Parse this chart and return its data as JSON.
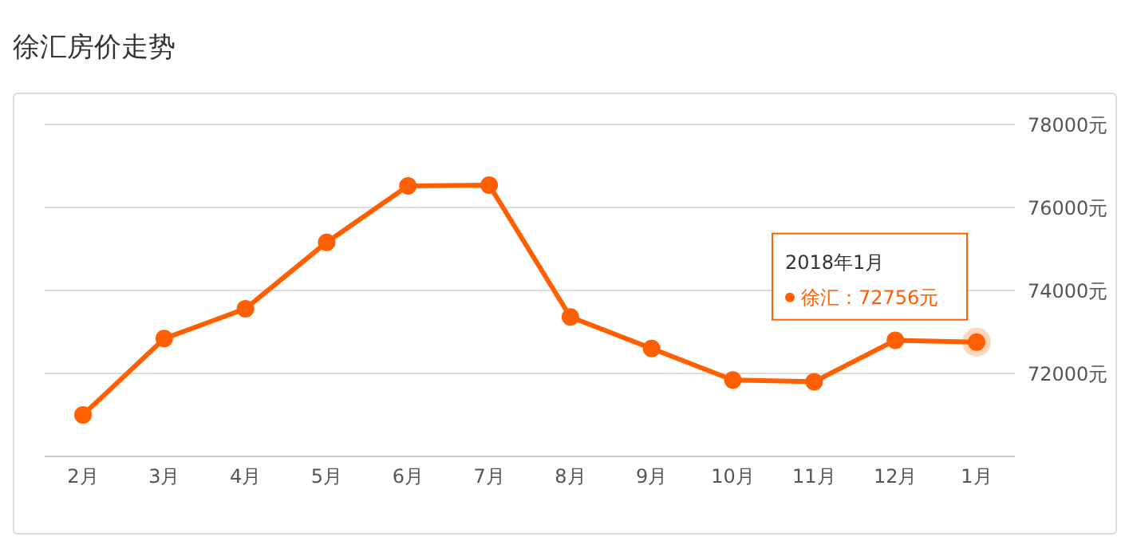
{
  "chart_data": {
    "type": "line",
    "title": "徐汇房价走势",
    "categories": [
      "2月",
      "3月",
      "4月",
      "5月",
      "6月",
      "7月",
      "8月",
      "9月",
      "10月",
      "11月",
      "12月",
      "1月"
    ],
    "series": [
      {
        "color": "#ff5f00",
        "values": [
          71000,
          72840,
          73560,
          75160,
          76520,
          76540,
          73360,
          72600,
          71840,
          71800,
          72800,
          72756
        ]
      }
    ],
    "ylim": [
      70000,
      78000
    ],
    "yticks": [
      {
        "value": 72000,
        "label": "72000元"
      },
      {
        "value": 74000,
        "label": "74000元"
      },
      {
        "value": 76000,
        "label": "76000元"
      },
      {
        "value": 78000,
        "label": "78000元"
      }
    ],
    "grid": "y",
    "marker": "circle",
    "line_style": "solid",
    "annotations": [
      "2018年1月",
      {
        "text": "徐汇：72756元",
        "x": "1月",
        "y": 72756
      }
    ]
  }
}
